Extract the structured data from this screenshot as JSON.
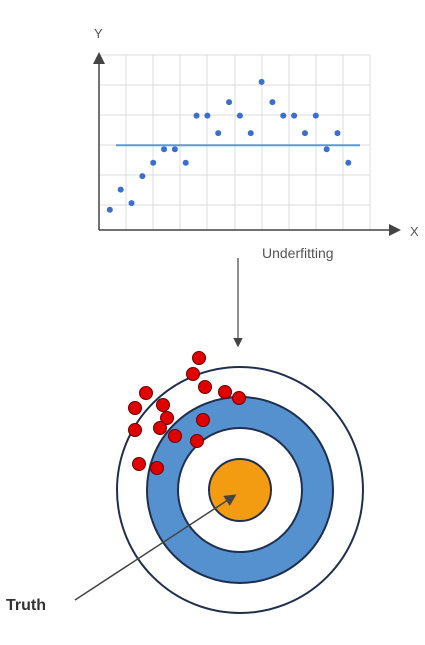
{
  "labels": {
    "y_axis": "Y",
    "x_axis": "X",
    "caption": "Underfitting",
    "truth": "Truth"
  },
  "colors": {
    "grid": "#dcdcdc",
    "axis": "#444444",
    "points": "#3a6fd0",
    "fit_line": "#5b9bd5",
    "ring_blue": "#5591cf",
    "bullseye": "#f39c12",
    "hits": "#e00000",
    "arrow": "#444444"
  },
  "chart_data": {
    "type": "scatter",
    "xlabel": "X",
    "ylabel": "Y",
    "grid": true,
    "fit_line": "horizontal",
    "points": [
      {
        "x": 1,
        "y": 1.5
      },
      {
        "x": 2,
        "y": 3.0
      },
      {
        "x": 3,
        "y": 2.0
      },
      {
        "x": 4,
        "y": 4.0
      },
      {
        "x": 5,
        "y": 5.0
      },
      {
        "x": 6,
        "y": 6.0
      },
      {
        "x": 7,
        "y": 6.0
      },
      {
        "x": 8,
        "y": 5.0
      },
      {
        "x": 9,
        "y": 8.5
      },
      {
        "x": 10,
        "y": 8.5
      },
      {
        "x": 11,
        "y": 7.2
      },
      {
        "x": 12,
        "y": 9.5
      },
      {
        "x": 13,
        "y": 8.5
      },
      {
        "x": 14,
        "y": 7.2
      },
      {
        "x": 15,
        "y": 11.0
      },
      {
        "x": 16,
        "y": 9.5
      },
      {
        "x": 17,
        "y": 8.5
      },
      {
        "x": 18,
        "y": 8.5
      },
      {
        "x": 19,
        "y": 7.2
      },
      {
        "x": 20,
        "y": 8.5
      },
      {
        "x": 21,
        "y": 6.0
      },
      {
        "x": 22,
        "y": 7.2
      },
      {
        "x": 23,
        "y": 5.0
      }
    ],
    "fit_y": 6.3,
    "xlim": [
      0,
      25
    ],
    "ylim": [
      0,
      13
    ]
  },
  "target": {
    "hits_count": 15
  }
}
